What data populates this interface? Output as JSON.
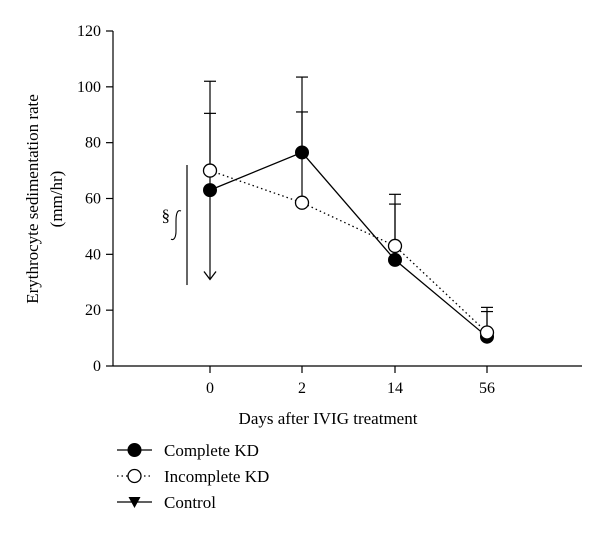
{
  "chart_data": {
    "type": "line",
    "categories": [
      "0",
      "2",
      "14",
      "56"
    ],
    "xlabel": "Days after IVIG treatment",
    "ylabel": "Erythrocyte sedimentation rate",
    "ylabel_unit": "(mm/hr)",
    "ylim": [
      0,
      120
    ],
    "yticks": [
      "0",
      "20",
      "40",
      "60",
      "80",
      "100",
      "120"
    ],
    "grid": false,
    "legend_position": "bottom-left",
    "series": [
      {
        "name": "Complete KD",
        "marker": "filled-circle",
        "line": "solid",
        "values": [
          63,
          76.5,
          38,
          10.5
        ],
        "error_upper": [
          90.5,
          103.5,
          58,
          19.5
        ]
      },
      {
        "name": "Incomplete KD",
        "marker": "open-circle",
        "line": "dotted",
        "values": [
          70,
          58.5,
          43,
          12
        ],
        "error_upper": [
          102,
          91,
          61.5,
          21
        ]
      },
      {
        "name": "Control",
        "marker": "filled-triangle",
        "line": "solid",
        "values": [
          null,
          null,
          null,
          null
        ],
        "error_upper": [
          null,
          null,
          null,
          null
        ]
      }
    ],
    "annotation": {
      "text": "§",
      "bracket_range": [
        72,
        29
      ]
    },
    "lower_error_arrow": {
      "category": "0",
      "from": 63,
      "to": 31
    }
  },
  "colors": {
    "ink": "#000000",
    "background": "#ffffff"
  }
}
